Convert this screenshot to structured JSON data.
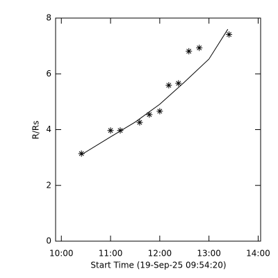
{
  "chart_data": {
    "type": "scatter",
    "xlabel": "Start Time (19-Sep-25 09:54:20)",
    "ylabel": "R/Rs",
    "xlim": [
      593,
      843
    ],
    "ylim": [
      0,
      8
    ],
    "xticks": [
      {
        "value": 600,
        "label": "10:00"
      },
      {
        "value": 660,
        "label": "11:00"
      },
      {
        "value": 720,
        "label": "12:00"
      },
      {
        "value": 780,
        "label": "13:00"
      },
      {
        "value": 840,
        "label": "14:00"
      }
    ],
    "yticks": [
      0,
      2,
      4,
      6,
      8
    ],
    "color": "#000000",
    "series": [
      {
        "type": "scatter",
        "marker": "asterisk",
        "x": [
          624.5,
          660,
          671.8,
          695.5,
          707.3,
          720,
          731,
          742.8,
          755.5,
          768.2,
          804.5
        ],
        "values": [
          3.14,
          3.97,
          3.97,
          4.26,
          4.54,
          4.66,
          5.59,
          5.66,
          6.81,
          6.93,
          7.41
        ]
      },
      {
        "type": "line",
        "x": [
          624.5,
          660,
          690,
          720,
          750,
          780,
          803
        ],
        "values": [
          3.1,
          3.74,
          4.27,
          4.91,
          5.7,
          6.53,
          7.6
        ]
      }
    ]
  }
}
